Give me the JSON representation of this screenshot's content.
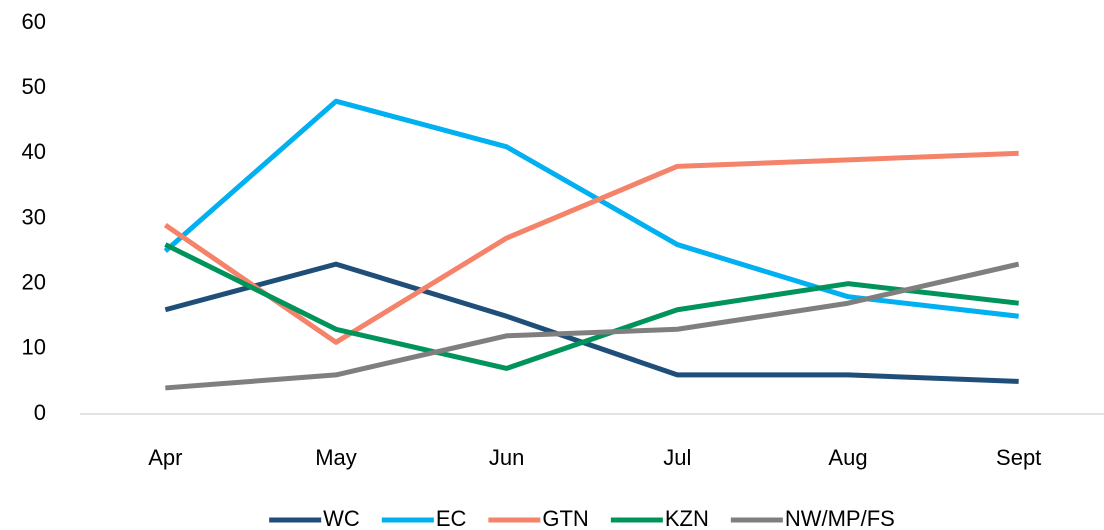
{
  "chart_data": {
    "type": "line",
    "categories": [
      "Apr",
      "May",
      "Jun",
      "Jul",
      "Aug",
      "Sept"
    ],
    "series": [
      {
        "name": "WC",
        "color": "#1f4e79",
        "values": [
          16,
          23,
          15,
          6,
          6,
          5
        ]
      },
      {
        "name": "EC",
        "color": "#00b0f0",
        "values": [
          25,
          48,
          41,
          26,
          18,
          15
        ]
      },
      {
        "name": "GTN",
        "color": "#f4836a",
        "values": [
          29,
          11,
          27,
          38,
          39,
          40
        ]
      },
      {
        "name": "KZN",
        "color": "#00935a",
        "values": [
          26,
          13,
          7,
          16,
          20,
          17
        ]
      },
      {
        "name": "NW/MP/FS",
        "color": "#7f7f7f",
        "values": [
          4,
          6,
          12,
          13,
          17,
          23
        ]
      }
    ],
    "ylim": [
      0,
      60
    ],
    "yticks": [
      0,
      10,
      20,
      30,
      40,
      50,
      60
    ],
    "grid": false,
    "legend": "bottom"
  }
}
